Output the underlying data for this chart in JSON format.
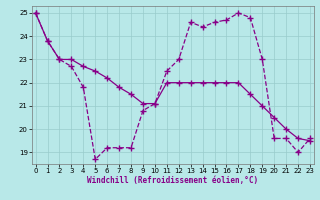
{
  "xlabel": "Windchill (Refroidissement éolien,°C)",
  "line1_x": [
    0,
    1,
    2,
    3,
    4,
    5,
    6,
    7,
    8,
    9,
    10,
    11,
    12,
    13,
    14,
    15,
    16,
    17,
    18,
    19,
    20,
    21,
    22,
    23
  ],
  "line1_y": [
    25.0,
    23.8,
    23.0,
    22.7,
    21.8,
    18.7,
    19.2,
    19.2,
    19.2,
    20.8,
    21.1,
    22.5,
    23.0,
    24.6,
    24.4,
    24.6,
    24.7,
    25.0,
    24.8,
    23.0,
    19.6,
    19.6,
    19.0,
    19.6
  ],
  "line2_x": [
    0,
    1,
    2,
    3,
    4,
    5,
    6,
    7,
    8,
    9,
    10,
    11,
    12,
    13,
    14,
    15,
    16,
    17,
    18,
    19,
    20,
    21,
    22,
    23
  ],
  "line2_y": [
    25.0,
    23.8,
    23.0,
    23.0,
    22.7,
    22.5,
    22.2,
    21.8,
    21.5,
    21.1,
    21.1,
    22.0,
    22.0,
    22.0,
    22.0,
    22.0,
    22.0,
    22.0,
    21.5,
    21.0,
    20.5,
    20.0,
    19.6,
    19.5
  ],
  "color": "#880088",
  "bg_color": "#b8e8e8",
  "grid_color": "#99cccc",
  "marker": "+",
  "markersize": 4,
  "lw": 0.9,
  "xlim": [
    -0.3,
    23.3
  ],
  "ylim": [
    18.5,
    25.3
  ],
  "yticks": [
    19,
    20,
    21,
    22,
    23,
    24,
    25
  ],
  "xticks": [
    0,
    1,
    2,
    3,
    4,
    5,
    6,
    7,
    8,
    9,
    10,
    11,
    12,
    13,
    14,
    15,
    16,
    17,
    18,
    19,
    20,
    21,
    22,
    23
  ]
}
